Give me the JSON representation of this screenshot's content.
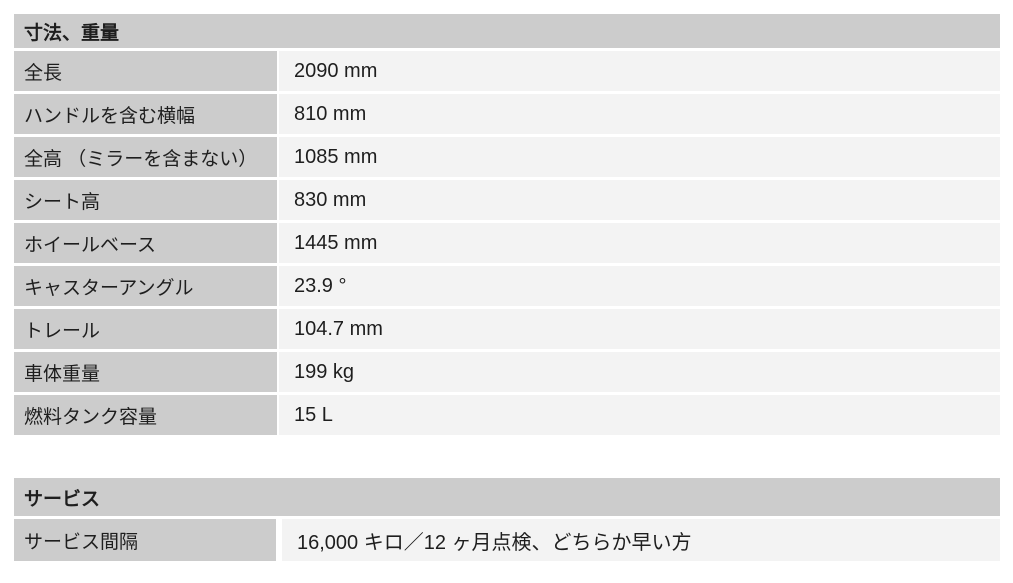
{
  "colors": {
    "page_bg": "#ffffff",
    "header_bg": "#cccccc",
    "label_bg": "#cccccc",
    "value_bg": "#f3f3f3",
    "text": "#1e1e1e"
  },
  "tables": [
    {
      "title": "寸法、重量",
      "rows": [
        {
          "label": "全長",
          "value": "2090 mm"
        },
        {
          "label": "ハンドルを含む横幅",
          "value": "810 mm"
        },
        {
          "label": "全高 （ミラーを含まない）",
          "value": "1085 mm"
        },
        {
          "label": "シート高",
          "value": "830 mm"
        },
        {
          "label": "ホイールベース",
          "value": "1445 mm"
        },
        {
          "label": "キャスターアングル",
          "value": "23.9 °"
        },
        {
          "label": "トレール",
          "value": "104.7 mm"
        },
        {
          "label": "車体重量",
          "value": "199 kg"
        },
        {
          "label": "燃料タンク容量",
          "value": "15 L"
        }
      ]
    },
    {
      "title": "サービス",
      "rows": [
        {
          "label": "サービス間隔",
          "value": "16,000 キロ／12 ヶ月点検、どちらか早い方"
        }
      ]
    }
  ]
}
